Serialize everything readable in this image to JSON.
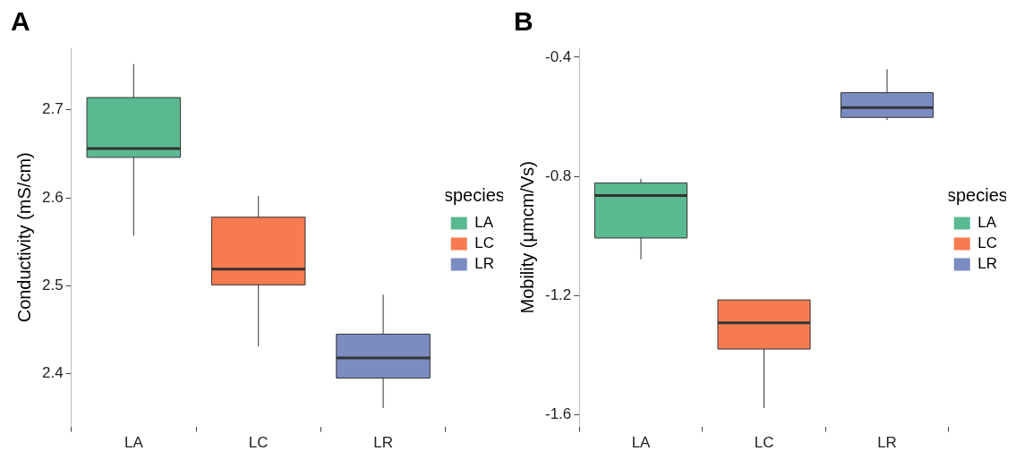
{
  "chart_data": [
    {
      "type": "box",
      "title": "A",
      "ylabel": "Conductivity (mS/cm)",
      "categories": [
        "LA",
        "LC",
        "LR"
      ],
      "series": [
        {
          "name": "LA",
          "color": "#5bb992",
          "boxes": [
            {
              "low": 2.557,
              "q1": 2.646,
              "median": 2.656,
              "q3": 2.714,
              "high": 2.752
            },
            null,
            null
          ]
        },
        {
          "name": "LC",
          "color": "#f77b51",
          "boxes": [
            null,
            {
              "low": 2.431,
              "q1": 2.501,
              "median": 2.519,
              "q3": 2.578,
              "high": 2.602
            },
            null
          ]
        },
        {
          "name": "LR",
          "color": "#7b8cc2",
          "boxes": [
            null,
            null,
            {
              "low": 2.361,
              "q1": 2.395,
              "median": 2.418,
              "q3": 2.445,
              "high": 2.49
            }
          ]
        }
      ],
      "ylim": [
        2.34,
        2.77
      ],
      "yticks": [
        2.4,
        2.5,
        2.6,
        2.7
      ],
      "grid": false,
      "legend": "right",
      "legend_title": "species"
    },
    {
      "type": "box",
      "title": "B",
      "ylabel": "Mobility (μmcm/Vs)",
      "categories": [
        "LA",
        "LC",
        "LR"
      ],
      "series": [
        {
          "name": "LA",
          "color": "#5bb992",
          "boxes": [
            {
              "low": -1.079,
              "q1": -1.007,
              "median": -0.864,
              "q3": -0.822,
              "high": -0.808
            },
            null,
            null
          ]
        },
        {
          "name": "LC",
          "color": "#f77b51",
          "boxes": [
            null,
            {
              "low": -1.578,
              "q1": -1.38,
              "median": -1.292,
              "q3": -1.215,
              "high": -1.215
            },
            null
          ]
        },
        {
          "name": "LR",
          "color": "#7b8cc2",
          "boxes": [
            null,
            null,
            {
              "low": -0.611,
              "q1": -0.602,
              "median": -0.569,
              "q3": -0.519,
              "high": -0.44
            }
          ]
        }
      ],
      "ylim": [
        -1.64,
        -0.37
      ],
      "yticks": [
        -0.4,
        -0.8,
        -1.2,
        -1.6
      ],
      "grid": false,
      "legend": "right",
      "legend_title": "species"
    }
  ]
}
